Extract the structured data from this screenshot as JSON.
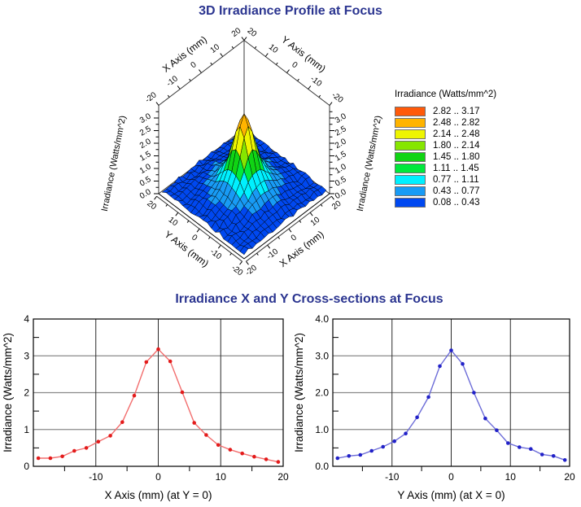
{
  "page": {
    "background": "#ffffff",
    "title_color": "#2b3590"
  },
  "titles": {
    "top": "3D Irradiance Profile at Focus",
    "bottom": "Irradiance X and Y Cross-sections at Focus"
  },
  "legend": {
    "title": "Irradiance (Watts/mm^2)",
    "bins": [
      {
        "label": "2.82 .. 3.17",
        "lo": 2.82,
        "hi": 3.17,
        "color": "#ff5a0a"
      },
      {
        "label": "2.48 .. 2.82",
        "lo": 2.48,
        "hi": 2.82,
        "color": "#ffb400"
      },
      {
        "label": "2.14 .. 2.48",
        "lo": 2.14,
        "hi": 2.48,
        "color": "#eef500"
      },
      {
        "label": "1.80 .. 2.14",
        "lo": 1.8,
        "hi": 2.14,
        "color": "#86e600"
      },
      {
        "label": "1.45 .. 1.80",
        "lo": 1.45,
        "hi": 1.8,
        "color": "#10d414"
      },
      {
        "label": "1.11 .. 1.45",
        "lo": 1.11,
        "hi": 1.45,
        "color": "#00e93c"
      },
      {
        "label": "0.77 .. 1.11",
        "lo": 0.77,
        "hi": 1.11,
        "color": "#00f0ff"
      },
      {
        "label": "0.43 .. 0.77",
        "lo": 0.43,
        "hi": 0.77,
        "color": "#189bf5"
      },
      {
        "label": "0.08 .. 0.43",
        "lo": 0.08,
        "hi": 0.43,
        "color": "#0048f0"
      }
    ]
  },
  "chart_data": [
    {
      "id": "surface3d",
      "type": "surface",
      "title": "3D Irradiance Profile at Focus",
      "x_axis": {
        "label": "X Axis (mm)",
        "min": -20,
        "max": 20,
        "major_ticks": [
          -20,
          -10,
          0,
          10,
          20
        ],
        "major_labels": [
          "-20",
          "-10",
          "0",
          "10",
          "20"
        ],
        "minor_ticks": [
          -15,
          -5,
          5,
          15
        ]
      },
      "y_axis": {
        "label": "Y Axis (mm)",
        "min": -20,
        "max": 20,
        "major_ticks": [
          -20,
          -10,
          0,
          10,
          20
        ],
        "major_labels": [
          "-20",
          "-10",
          "0",
          "10",
          "20"
        ],
        "minor_ticks": [
          -15,
          -5,
          5,
          15
        ]
      },
      "z_axis": {
        "label": "Irradiance (Watts/mm^2)",
        "min": 0,
        "max": 3.5,
        "major_ticks": [
          0,
          0.5,
          1,
          1.5,
          2,
          2.5,
          3
        ],
        "major_labels": [
          "0.0",
          "0.5",
          "1.0",
          "1.5",
          "2.0",
          "2.5",
          "3.0"
        ]
      },
      "peak": 3.17,
      "grid": {
        "min": -19.2,
        "max": 19.2,
        "n": 21
      },
      "radial_profile": {
        "r": [
          0,
          1.92,
          3.84,
          5.76,
          7.68,
          9.6,
          11.52,
          13.44,
          15.36,
          17.28,
          19.2,
          22.5,
          28.3
        ],
        "z": [
          3.17,
          2.79,
          1.99,
          1.26,
          0.9,
          0.62,
          0.48,
          0.37,
          0.28,
          0.2,
          0.15,
          0.12,
          0.09
        ]
      }
    },
    {
      "id": "xsection_x",
      "type": "line",
      "xlabel": "X Axis (mm) (at Y = 0)",
      "ylabel": "Irradiance (Watts/mm^2)",
      "xlim": [
        -20,
        20
      ],
      "ylim": [
        0,
        4
      ],
      "x_gridlines": [
        -10,
        0,
        10
      ],
      "y_gridlines": [
        1,
        2,
        3
      ],
      "x_minor_ticks": [
        -15,
        -5,
        5,
        15
      ],
      "y_minor_ticks": [
        0.5,
        1.5,
        2.5,
        3.5
      ],
      "x_tick_labels": [
        {
          "v": -10,
          "t": "-10"
        },
        {
          "v": 0,
          "t": "0"
        },
        {
          "v": 10,
          "t": "10"
        },
        {
          "v": 20,
          "t": "20"
        }
      ],
      "y_tick_labels": [
        {
          "v": 0,
          "t": "0"
        },
        {
          "v": 1,
          "t": "1"
        },
        {
          "v": 2,
          "t": "2"
        },
        {
          "v": 3,
          "t": "3"
        },
        {
          "v": 4,
          "t": "4"
        }
      ],
      "line_color": "#f26e6e",
      "marker_color": "#e31b1b",
      "x": [
        -19.2,
        -17.28,
        -15.36,
        -13.44,
        -11.52,
        -9.6,
        -7.68,
        -5.76,
        -3.84,
        -1.92,
        0,
        1.92,
        3.84,
        5.76,
        7.68,
        9.6,
        11.52,
        13.44,
        15.36,
        17.28,
        19.2
      ],
      "y": [
        0.22,
        0.22,
        0.27,
        0.42,
        0.5,
        0.67,
        0.83,
        1.2,
        1.92,
        2.83,
        3.18,
        2.85,
        2.01,
        1.18,
        0.85,
        0.58,
        0.45,
        0.35,
        0.26,
        0.19,
        0.12
      ]
    },
    {
      "id": "xsection_y",
      "type": "line",
      "xlabel": "Y Axis (mm) (at X = 0)",
      "ylabel": "Irradiance (Watts/mm^2)",
      "xlim": [
        -20,
        20
      ],
      "ylim": [
        0,
        4
      ],
      "x_gridlines": [
        -10,
        0,
        10
      ],
      "y_gridlines": [
        1,
        2,
        3
      ],
      "x_minor_ticks": [
        -15,
        -5,
        5,
        15
      ],
      "y_minor_ticks": [
        0.5,
        1.5,
        2.5,
        3.5
      ],
      "x_tick_labels": [
        {
          "v": -10,
          "t": "-10"
        },
        {
          "v": 0,
          "t": "0"
        },
        {
          "v": 10,
          "t": "10"
        },
        {
          "v": 20,
          "t": "20"
        }
      ],
      "y_tick_labels": [
        {
          "v": 0,
          "t": "0.0"
        },
        {
          "v": 1,
          "t": "1.0"
        },
        {
          "v": 2,
          "t": "2.0"
        },
        {
          "v": 3,
          "t": "3.0"
        },
        {
          "v": 4,
          "t": "4.0"
        }
      ],
      "line_color": "#6d6dd8",
      "marker_color": "#2121c8",
      "x": [
        -19.2,
        -17.28,
        -15.36,
        -13.44,
        -11.52,
        -9.6,
        -7.68,
        -5.76,
        -3.84,
        -1.92,
        0,
        1.92,
        3.84,
        5.76,
        7.68,
        9.6,
        11.52,
        13.44,
        15.36,
        17.28,
        19.2
      ],
      "y": [
        0.22,
        0.28,
        0.31,
        0.42,
        0.53,
        0.68,
        0.89,
        1.33,
        1.88,
        2.72,
        3.15,
        2.78,
        2.0,
        1.3,
        0.98,
        0.63,
        0.52,
        0.47,
        0.32,
        0.28,
        0.17
      ]
    }
  ]
}
